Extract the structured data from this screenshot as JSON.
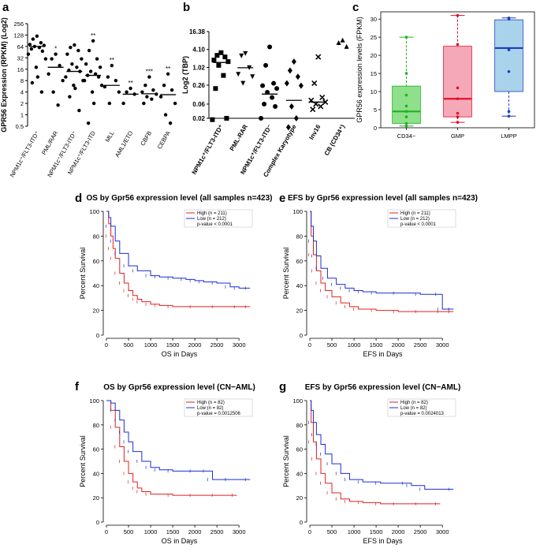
{
  "figure": {
    "panel_labels": [
      "a",
      "b",
      "c",
      "d",
      "e",
      "f",
      "g"
    ]
  },
  "chart_data": [
    {
      "id": "a",
      "type": "scatter",
      "ylabel": "GPR56 Expression (RPKM) (Log2)",
      "yscale": "log2",
      "yticks": [
        "0.5",
        "1",
        "2",
        "4",
        "8",
        "16",
        "32",
        "64",
        "128",
        "256"
      ],
      "ytick_values": [
        0.5,
        1,
        2,
        4,
        8,
        16,
        32,
        64,
        128,
        256
      ],
      "categories": [
        "NPM1c+/FLT3-ITD+",
        "PML/RAR",
        "NPM1c+/FLT3-ITD+",
        "NPM1c+/FLT3-ITD",
        "MLL",
        "AML1/ETO",
        "CBFB",
        "CEBPA"
      ],
      "category_labels": [
        "NPM1c⁺/FLT3-ITD⁺",
        "PML/RAR",
        "NPM1c⁺/FLT3-ITD⁺",
        "NPM1c⁺/FLT3-ITD",
        "MLL",
        "AML1/ETO",
        "CBFB",
        "CEBPA"
      ],
      "significance": [
        "",
        "*",
        "",
        "**",
        "**",
        "**",
        "***",
        "**"
      ],
      "medians": [
        64,
        18,
        14,
        11,
        6,
        3.5,
        3.6,
        3.4
      ],
      "points": [
        [
          120,
          100,
          80,
          72,
          68,
          64,
          60,
          55,
          48,
          40,
          30,
          18,
          10,
          7,
          4
        ],
        [
          40,
          30,
          20,
          12,
          8,
          4,
          1.8
        ],
        [
          70,
          60,
          50,
          40,
          30,
          22,
          18,
          15,
          14,
          10,
          8,
          6,
          5,
          3,
          1.3
        ],
        [
          90,
          50,
          30,
          22,
          18,
          14,
          12,
          11,
          10,
          8,
          6,
          4,
          2,
          0.6
        ],
        [
          20,
          10,
          8,
          5.5,
          4,
          2
        ],
        [
          5,
          4,
          3.5,
          2
        ],
        [
          10,
          6,
          4.5,
          4,
          3.5,
          3,
          2.6,
          2
        ],
        [
          12,
          6,
          4.5,
          3,
          2,
          1,
          0.6
        ]
      ]
    },
    {
      "id": "b",
      "type": "scatter",
      "ylabel": "Log2 (TBP)",
      "yscale": "log2",
      "yticks": [
        "0.02",
        "0.06",
        "0.26",
        "1.02",
        "4.10",
        "16.38"
      ],
      "ytick_values": [
        0.02,
        0.06,
        0.26,
        1.02,
        4.1,
        16.38
      ],
      "categories": [
        "NPM1c+/FLT3-ITD+",
        "PML-RAR",
        "NPM1c+/FLT3-ITD-",
        "Complex Karyotype",
        "Inv16",
        "CB (CD34+)"
      ],
      "category_labels": [
        "NPM1c⁺/FLT3-ITD⁺",
        "PML-RAR",
        "NPM1c⁺/FLT3-ITD⁻",
        "Complex Karyotype",
        "Inv16",
        "CB (CD34⁺)"
      ],
      "markers": [
        "square",
        "triangle-down",
        "circle",
        "diamond",
        "x",
        "triangle-up"
      ],
      "medians": [
        1.5,
        1.0,
        0.13,
        0.08,
        0.07,
        null
      ],
      "points": [
        [
          3.2,
          2.6,
          2.3,
          1.8,
          1.6,
          1.2,
          0.55,
          0.2,
          0.02,
          0.018
        ],
        [
          3.0,
          2.5,
          1.0,
          0.6,
          0.5,
          0.3
        ],
        [
          5.0,
          1.2,
          0.3,
          0.25,
          0.2,
          0.15,
          0.1,
          0.06,
          0.05,
          0.02
        ],
        [
          1.6,
          0.8,
          0.5,
          0.3,
          0.25,
          0.05,
          0.02,
          0.01
        ],
        [
          2.3,
          0.3,
          0.1,
          0.08,
          0.07,
          0.06,
          0.05,
          0.04
        ],
        [
          8.5,
          7.0,
          5.2
        ]
      ]
    },
    {
      "id": "c",
      "type": "box",
      "ylabel": "GPR56 expression levels (FPKM)",
      "ylim": [
        0,
        32
      ],
      "yticks": [
        0,
        5,
        10,
        15,
        20,
        25,
        30
      ],
      "categories": [
        "CD34-",
        "GMP",
        "LMPP"
      ],
      "category_labels": [
        "CD34−",
        "GMP",
        "LMPP"
      ],
      "colors": [
        "#8fe08a",
        "#f5a9b8",
        "#a9d3ea"
      ],
      "median_colors": [
        "#22b022",
        "#e0102a",
        "#1a3fc0"
      ],
      "boxes": [
        {
          "min": 0.5,
          "q1": 1.2,
          "median": 4.5,
          "q3": 11.5,
          "max": 25,
          "points": [
            25,
            15,
            9,
            6,
            4.5,
            3,
            1.2,
            0.5
          ]
        },
        {
          "min": 1.5,
          "q1": 3,
          "median": 8,
          "q3": 22.5,
          "max": 31,
          "points": [
            31,
            23,
            11,
            8,
            4,
            3,
            1.5
          ]
        },
        {
          "min": 3.2,
          "q1": 10,
          "median": 22,
          "q3": 29.8,
          "max": 30.3,
          "points": [
            30.3,
            30,
            21.5,
            15.5,
            4.5,
            3.2
          ]
        }
      ]
    },
    {
      "id": "d",
      "type": "survival",
      "title": "OS by Gpr56 expression level (all samples n=423)",
      "xlabel": "OS in Days",
      "ylabel": "Percent Survival",
      "xlim": [
        0,
        3300
      ],
      "xticks": [
        0,
        500,
        1000,
        1500,
        2000,
        2500,
        3000
      ],
      "ylim": [
        0,
        100
      ],
      "yticks": [
        0,
        20,
        40,
        60,
        80,
        100
      ],
      "legend": [
        "High (n = 211)",
        "Low (n = 212)",
        "p-value < 0.0001"
      ],
      "series": [
        {
          "name": "High (n = 211)",
          "color": "#e02020",
          "x": [
            0,
            50,
            100,
            150,
            200,
            300,
            400,
            500,
            600,
            700,
            800,
            1000,
            1200,
            1500,
            2000,
            2500,
            3000,
            3250
          ],
          "y": [
            100,
            90,
            80,
            70,
            62,
            50,
            42,
            36,
            32,
            29,
            27,
            25,
            24,
            23,
            23,
            23,
            23,
            23
          ]
        },
        {
          "name": "Low (n = 212)",
          "color": "#1a2fd6",
          "x": [
            0,
            50,
            100,
            200,
            300,
            500,
            700,
            1000,
            1200,
            1500,
            1800,
            2000,
            2200,
            2500,
            2800,
            3000,
            3250
          ],
          "y": [
            100,
            95,
            88,
            76,
            66,
            56,
            52,
            48,
            47,
            46,
            45,
            44,
            43,
            42,
            39,
            38,
            38
          ]
        }
      ]
    },
    {
      "id": "e",
      "type": "survival",
      "title": "EFS by Gpr56 expression level (all samples n=423)",
      "xlabel": "EFS in Days",
      "ylabel": "Percent Survival",
      "xlim": [
        0,
        3300
      ],
      "xticks": [
        0,
        500,
        1000,
        1500,
        2000,
        2500,
        3000
      ],
      "ylim": [
        0,
        100
      ],
      "yticks": [
        0,
        20,
        40,
        60,
        80,
        100
      ],
      "legend": [
        "High (n = 211)",
        "Low (n = 212)",
        "p-value < 0.0001"
      ],
      "series": [
        {
          "name": "High (n = 211)",
          "color": "#e02020",
          "x": [
            0,
            30,
            80,
            150,
            250,
            350,
            500,
            700,
            900,
            1100,
            1500,
            2000,
            2500,
            3000,
            3250
          ],
          "y": [
            100,
            80,
            65,
            52,
            42,
            36,
            31,
            26,
            23,
            21,
            20,
            19,
            19,
            19,
            19
          ]
        },
        {
          "name": "Low (n = 212)",
          "color": "#1a2fd6",
          "x": [
            0,
            30,
            80,
            150,
            250,
            400,
            600,
            800,
            1000,
            1200,
            1500,
            2000,
            2500,
            2950,
            3000,
            3250
          ],
          "y": [
            100,
            88,
            76,
            64,
            54,
            46,
            41,
            38,
            36,
            35,
            34,
            34,
            33,
            33,
            21,
            21
          ]
        }
      ]
    },
    {
      "id": "f",
      "type": "survival",
      "title": "OS by Gpr56 expression level (CN−AML)",
      "xlabel": "OS in Days",
      "ylabel": "Percent Survival",
      "xlim": [
        0,
        3300
      ],
      "xticks": [
        0,
        500,
        1000,
        1500,
        2000,
        2500,
        3000
      ],
      "ylim": [
        0,
        100
      ],
      "yticks": [
        0,
        20,
        40,
        60,
        80,
        100
      ],
      "legend": [
        "High (n = 82)",
        "Low (n = 82)",
        "p-value = 0.0012506"
      ],
      "series": [
        {
          "name": "High (n = 82)",
          "color": "#e02020",
          "x": [
            0,
            100,
            200,
            300,
            400,
            500,
            600,
            700,
            800,
            1000,
            1500,
            2000,
            2500,
            2950
          ],
          "y": [
            100,
            92,
            78,
            62,
            50,
            40,
            33,
            28,
            25,
            23,
            22,
            22,
            22,
            22
          ]
        },
        {
          "name": "Low (n = 82)",
          "color": "#1a2fd6",
          "x": [
            0,
            100,
            200,
            300,
            400,
            500,
            600,
            800,
            1000,
            1200,
            1500,
            2000,
            2300,
            2400,
            2800,
            3250
          ],
          "y": [
            100,
            98,
            92,
            84,
            74,
            66,
            58,
            50,
            45,
            43,
            42,
            42,
            42,
            35,
            35,
            35
          ]
        }
      ]
    },
    {
      "id": "g",
      "type": "survival",
      "title": "EFS by Gpr56 expression level (CN−AML)",
      "xlabel": "EFS in Days",
      "ylabel": "Percent Survival",
      "xlim": [
        0,
        3300
      ],
      "xticks": [
        0,
        500,
        1000,
        1500,
        2000,
        2500,
        3000
      ],
      "ylim": [
        0,
        100
      ],
      "yticks": [
        0,
        20,
        40,
        60,
        80,
        100
      ],
      "legend": [
        "High (n = 82)",
        "Low (n = 82)",
        "p-value = 0.0024013"
      ],
      "series": [
        {
          "name": "High (n = 82)",
          "color": "#e02020",
          "x": [
            0,
            30,
            80,
            150,
            250,
            350,
            500,
            700,
            900,
            1200,
            1600,
            2000,
            2500,
            2950
          ],
          "y": [
            100,
            82,
            66,
            52,
            40,
            32,
            24,
            19,
            17,
            16,
            15,
            15,
            15,
            15
          ]
        },
        {
          "name": "Low (n = 82)",
          "color": "#1a2fd6",
          "x": [
            0,
            30,
            80,
            150,
            250,
            350,
            500,
            700,
            900,
            1200,
            1600,
            2200,
            2300,
            2600,
            3250
          ],
          "y": [
            100,
            92,
            82,
            72,
            64,
            56,
            48,
            40,
            35,
            33,
            32,
            32,
            30,
            27,
            27
          ]
        }
      ]
    }
  ]
}
